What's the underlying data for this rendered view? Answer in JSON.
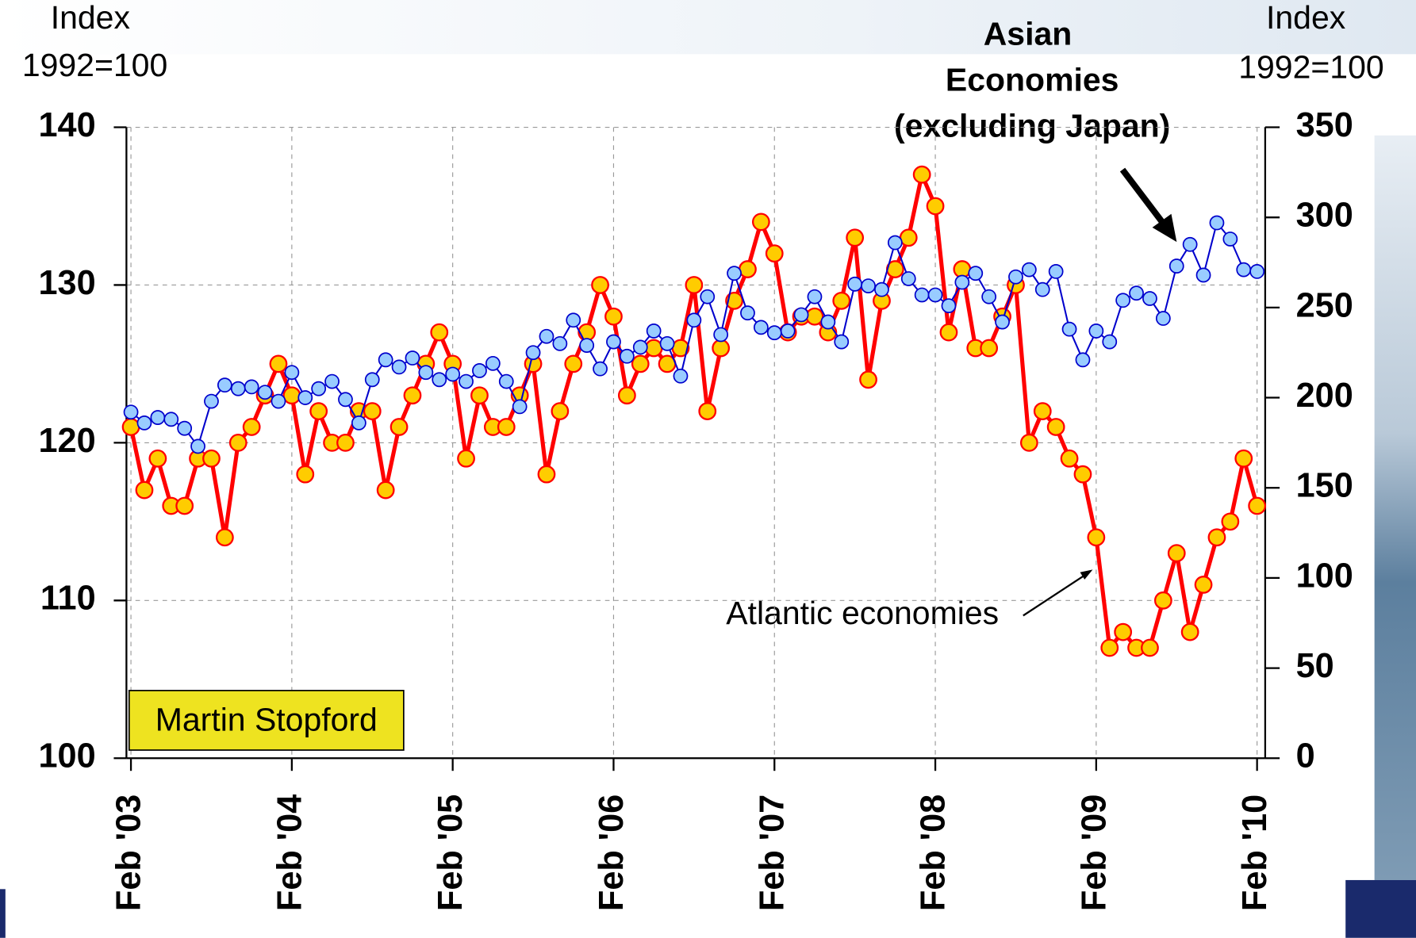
{
  "chart_data": {
    "type": "line",
    "ylabel": [
      "Index",
      "1992=100"
    ],
    "y2label": [
      "Index",
      "1992=100"
    ],
    "asian_label": [
      "Asian",
      "Economies",
      "(excluding Japan)"
    ],
    "atlantic_label": "Atlantic economies",
    "watermark": "Martin Stopford",
    "categories": [
      "Feb '03",
      null,
      null,
      null,
      null,
      null,
      null,
      null,
      null,
      null,
      null,
      null,
      "Feb '04",
      null,
      null,
      null,
      null,
      null,
      null,
      null,
      null,
      null,
      null,
      null,
      "Feb '05",
      null,
      null,
      null,
      null,
      null,
      null,
      null,
      null,
      null,
      null,
      null,
      "Feb '06",
      null,
      null,
      null,
      null,
      null,
      null,
      null,
      null,
      null,
      null,
      null,
      "Feb '07",
      null,
      null,
      null,
      null,
      null,
      null,
      null,
      null,
      null,
      null,
      null,
      "Feb '08",
      null,
      null,
      null,
      null,
      null,
      null,
      null,
      null,
      null,
      null,
      null,
      "Feb '09",
      null,
      null,
      null,
      null,
      null,
      null,
      null,
      null,
      null,
      null,
      null,
      "Feb '10"
    ],
    "ylim": [
      100,
      140
    ],
    "yticks": [
      100,
      110,
      120,
      130,
      140
    ],
    "y2lim": [
      0,
      350
    ],
    "y2ticks": [
      0,
      50,
      100,
      150,
      200,
      250,
      300,
      350
    ],
    "grid": true,
    "series": [
      {
        "color": "#ff0000",
        "marker_color": "#ffcc00",
        "values": [
          121,
          117,
          119,
          116,
          116,
          119,
          119,
          114,
          120,
          121,
          123,
          125,
          123,
          118,
          122,
          120,
          120,
          122,
          122,
          117,
          121,
          123,
          125,
          127,
          125,
          119,
          123,
          121,
          121,
          123,
          125,
          118,
          122,
          125,
          127,
          130,
          128,
          123,
          125,
          126,
          125,
          126,
          130,
          122,
          126,
          129,
          131,
          134,
          132,
          127,
          128,
          128,
          127,
          129,
          133,
          124,
          129,
          131,
          133,
          137,
          135,
          127,
          131,
          126,
          126,
          128,
          130,
          120,
          122,
          121,
          119,
          118,
          114,
          107,
          108,
          107,
          107,
          110,
          113,
          108,
          111,
          114,
          115,
          119,
          116
        ]
      },
      {
        "color": "#0000cc",
        "marker_color": "#99ccff",
        "axis": "y2",
        "values": [
          192,
          186,
          189,
          188,
          183,
          173,
          198,
          207,
          205,
          206,
          203,
          198,
          214,
          200,
          205,
          209,
          199,
          186,
          210,
          221,
          217,
          222,
          214,
          210,
          213,
          209,
          215,
          219,
          209,
          195,
          225,
          234,
          230,
          243,
          229,
          216,
          231,
          223,
          228,
          237,
          230,
          212,
          243,
          256,
          235,
          269,
          247,
          239,
          236,
          237,
          246,
          256,
          242,
          231,
          263,
          262,
          260,
          286,
          266,
          257,
          257,
          251,
          264,
          269,
          256,
          242,
          267,
          271,
          260,
          270,
          238,
          221,
          237,
          231,
          254,
          258,
          255,
          244,
          273,
          285,
          268,
          297,
          288,
          271,
          270
        ]
      }
    ]
  }
}
